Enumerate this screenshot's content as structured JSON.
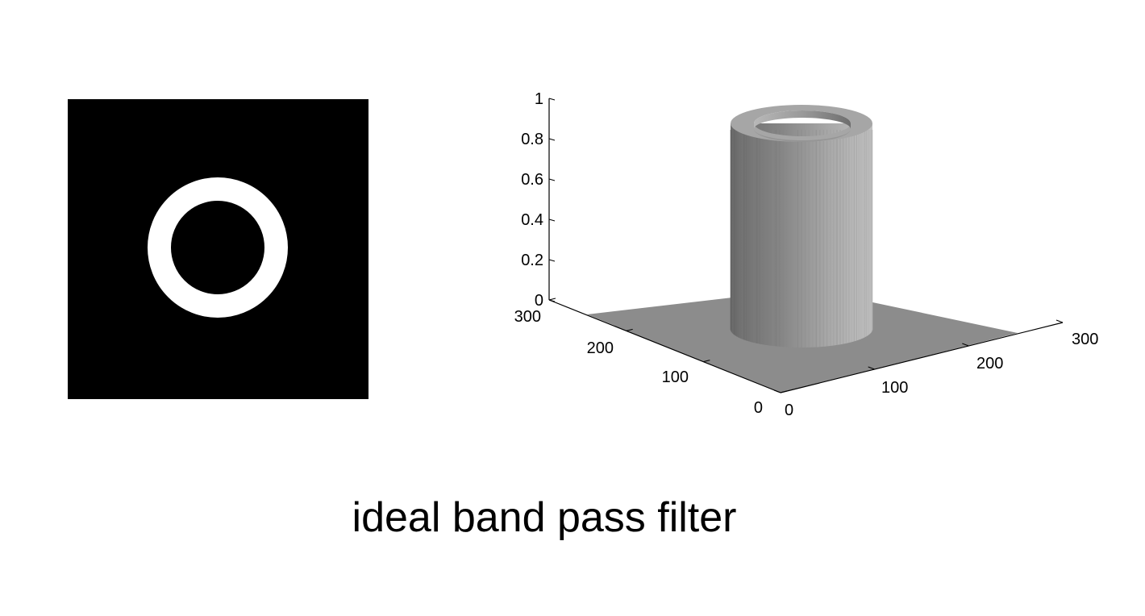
{
  "caption": "ideal band pass filter",
  "filter_image": {
    "background_color": "#000000",
    "ring_color": "#ffffff"
  },
  "chart_data": {
    "type": "surface",
    "x": {
      "ticks": [
        0,
        100,
        200,
        300
      ],
      "range": [
        0,
        300
      ]
    },
    "y": {
      "ticks": [
        0,
        100,
        200,
        300
      ],
      "range": [
        0,
        300
      ]
    },
    "z": {
      "ticks": [
        "0",
        "0.2",
        "0.4",
        "0.6",
        "0.8",
        "1"
      ],
      "range": [
        0,
        1
      ]
    },
    "surface_color": "#8c8c8c"
  }
}
